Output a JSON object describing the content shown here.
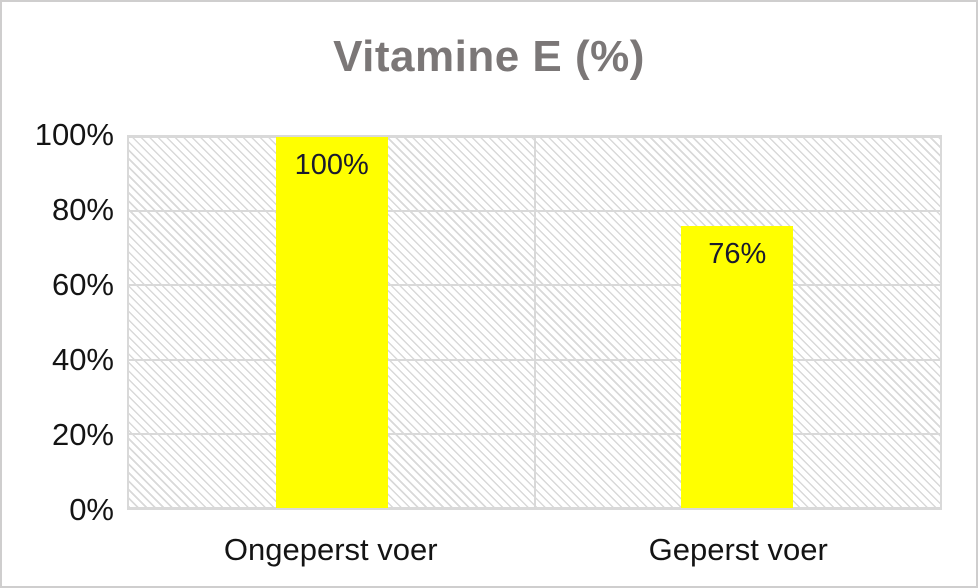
{
  "window": {
    "background_color": "#ffffff",
    "border_color": "#cfcece"
  },
  "chart_data": {
    "type": "bar",
    "title": "Vitamine E (%)",
    "categories": [
      "Ongeperst voer",
      "Geperst voer"
    ],
    "values": [
      100,
      76
    ],
    "data_labels": [
      "100%",
      "76%"
    ],
    "xlabel": "",
    "ylabel": "",
    "ylim": [
      0,
      100
    ],
    "yticks": [
      {
        "value": 0,
        "label": "0%"
      },
      {
        "value": 20,
        "label": "20%"
      },
      {
        "value": 40,
        "label": "40%"
      },
      {
        "value": 60,
        "label": "60%"
      },
      {
        "value": 80,
        "label": "80%"
      },
      {
        "value": 100,
        "label": "100%"
      }
    ],
    "grid": "horizontal-and-category-separator",
    "legend": "none",
    "plot_fill_pattern": "light-downward-diagonal-hatch",
    "colors": {
      "bar_fill": "#ffff00",
      "data_label": "#1a1a2e",
      "title": "#7b7777",
      "axis_labels": "#141414",
      "gridline": "#d9d9d9",
      "plot_border": "#d9d9d9",
      "hatch_dot": "#d9d9d9"
    }
  }
}
